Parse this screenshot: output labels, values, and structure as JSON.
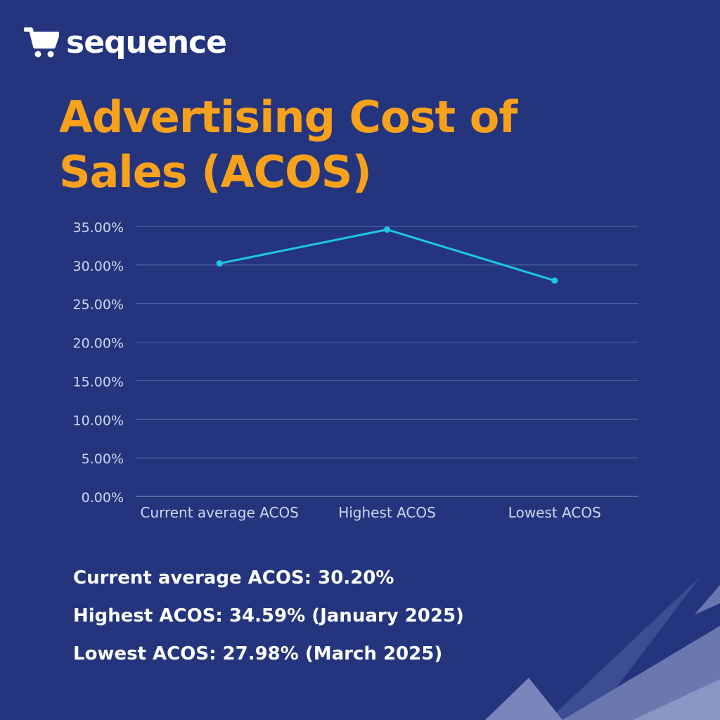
{
  "brand": {
    "name": "sequence",
    "icon": "shopping-cart-icon"
  },
  "title": {
    "line1": "Advertising Cost of",
    "line2": "Sales (ACOS)"
  },
  "colors": {
    "background": "#24357e",
    "title": "#f8a21c",
    "line": "#1ec8e4",
    "grid": "#5a6aa8",
    "axis_text": "#d0d6ee",
    "text": "#ffffff"
  },
  "chart_data": {
    "type": "line",
    "categories": [
      "Current average ACOS",
      "Highest ACOS",
      "Lowest ACOS"
    ],
    "series": [
      {
        "values": [
          30.2,
          34.59,
          27.98
        ]
      }
    ],
    "ylim": [
      0,
      35
    ],
    "yticks": [
      0,
      5,
      10,
      15,
      20,
      25,
      30,
      35
    ],
    "ytick_labels": [
      "0.00%",
      "5.00%",
      "10.00%",
      "15.00%",
      "20.00%",
      "25.00%",
      "30.00%",
      "35.00%"
    ],
    "grid": true,
    "legend": "none",
    "title": "",
    "xlabel": "",
    "ylabel": ""
  },
  "summary": {
    "current": "Current average ACOS: 30.20%",
    "highest": "Highest ACOS: 34.59% (January 2025)",
    "lowest": "Lowest ACOS: 27.98% (March 2025)"
  }
}
